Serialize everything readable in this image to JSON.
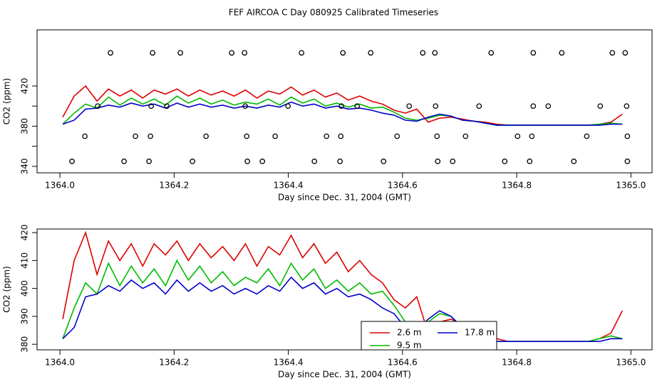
{
  "title": "FEF AIRCOA C  Day 080925  Calibrated Timeseries",
  "chart_data": [
    {
      "type": "line",
      "xlabel": "Day since Dec. 31, 2004 (GMT)",
      "ylabel": "CO2 (ppm)",
      "xlim": [
        1363.96,
        1365.037
      ],
      "ylim": [
        333.6,
        475.9
      ],
      "xticks": [
        {
          "value": 1364,
          "label": "1364.0"
        },
        1364.2,
        1364.4,
        1364.6,
        1364.8,
        {
          "value": 1365,
          "label": "1365.0"
        }
      ],
      "yticks": [
        340,
        380,
        420
      ],
      "yminorticks": [
        360,
        400
      ],
      "x": [
        1364.005,
        1364.025,
        1364.045,
        1364.065,
        1364.085,
        1364.105,
        1364.125,
        1364.145,
        1364.165,
        1364.185,
        1364.205,
        1364.225,
        1364.245,
        1364.265,
        1364.285,
        1364.305,
        1364.325,
        1364.345,
        1364.365,
        1364.385,
        1364.405,
        1364.425,
        1364.445,
        1364.465,
        1364.485,
        1364.505,
        1364.525,
        1364.545,
        1364.565,
        1364.585,
        1364.605,
        1364.625,
        1364.645,
        1364.665,
        1364.685,
        1364.705,
        1364.725,
        1364.745,
        1364.765,
        1364.785,
        1364.805,
        1364.825,
        1364.845,
        1364.865,
        1364.885,
        1364.905,
        1364.925,
        1364.945,
        1364.965,
        1364.985
      ],
      "series": [
        {
          "name": "2.6 m",
          "color": "#dd0000",
          "values": [
            389,
            410,
            420,
            405,
            417,
            410,
            416,
            408,
            416,
            412,
            417,
            410,
            416,
            411,
            415,
            410,
            416,
            408,
            415,
            412,
            419,
            411,
            416,
            409,
            413,
            406,
            410,
            405,
            402,
            396,
            393,
            397,
            384,
            388,
            389,
            387,
            385,
            384,
            382,
            381,
            381,
            381,
            381,
            381,
            381,
            381,
            381,
            382,
            384,
            392
          ]
        },
        {
          "name": "9.5 m",
          "color": "#00bb00",
          "values": [
            382,
            393,
            402,
            398,
            409,
            401,
            408,
            402,
            407,
            401,
            410,
            403,
            408,
            402,
            406,
            401,
            404,
            402,
            407,
            401,
            409,
            403,
            407,
            400,
            403,
            399,
            402,
            398,
            399,
            394,
            388,
            386,
            388,
            391,
            390,
            386,
            385,
            383,
            381,
            381,
            381,
            381,
            381,
            381,
            381,
            381,
            381,
            382,
            383,
            382
          ]
        },
        {
          "name": "17.8 m",
          "color": "#0000cc",
          "values": [
            382,
            386,
            397,
            398,
            401,
            399,
            403,
            400,
            402,
            398,
            403,
            399,
            402,
            399,
            401,
            398,
            400,
            398,
            401,
            399,
            404,
            400,
            402,
            398,
            400,
            397,
            398,
            396,
            393,
            391,
            386,
            385,
            389,
            392,
            390,
            386,
            385,
            383,
            381,
            381,
            381,
            381,
            381,
            381,
            381,
            381,
            381,
            381,
            382,
            382
          ]
        }
      ],
      "markers": {
        "x": [
          1364.0886,
          1364.1623,
          1364.211,
          1364.3009,
          1364.3233,
          1364.4232,
          1364.4956,
          1364.5443,
          1364.6355,
          1364.6567,
          1364.7553,
          1364.829,
          1364.8789,
          1364.9675,
          1364.99,
          1364.0662,
          1364.1598,
          1364.1873,
          1364.3246,
          1364.3995,
          1364.4931,
          1364.5206,
          1364.6117,
          1364.6579,
          1364.7341,
          1364.829,
          1364.8552,
          1364.9463,
          1364.9925,
          1364.0437,
          1364.1323,
          1364.1586,
          1364.2559,
          1364.3271,
          1364.377,
          1364.4669,
          1364.4919,
          1364.5905,
          1364.6604,
          1364.7104,
          1364.8015,
          1364.8265,
          1364.9226,
          1364.9938,
          1364.0212,
          1364.1124,
          1364.1561,
          1364.2322,
          1364.3283,
          1364.3546,
          1364.4457,
          1364.4906,
          1364.5668,
          1364.6617,
          1364.6879,
          1364.779,
          1364.8227,
          1364.9001,
          1364.9938
        ],
        "y": [
          453,
          453,
          453,
          453,
          453,
          453,
          453,
          453,
          453,
          453,
          453,
          453,
          453,
          453,
          453,
          400,
          400,
          400,
          400,
          400,
          400,
          400,
          400,
          400,
          400,
          400,
          400,
          400,
          400,
          370,
          370,
          370,
          370,
          370,
          370,
          370,
          370,
          370,
          370,
          370,
          370,
          370,
          370,
          370,
          345,
          345,
          345,
          345,
          345,
          345,
          345,
          345,
          345,
          345,
          345,
          345,
          345,
          345,
          345
        ]
      }
    },
    {
      "type": "line",
      "xlabel": "Day since Dec. 31, 2004 (GMT)",
      "ylabel": "CO2 (ppm)",
      "xlim": [
        1363.96,
        1365.037
      ],
      "ylim": [
        378.0,
        421.3
      ],
      "xticks": [
        {
          "value": 1364,
          "label": "1364.0"
        },
        1364.2,
        1364.4,
        1364.6,
        1364.8,
        {
          "value": 1365,
          "label": "1365.0"
        }
      ],
      "yticks": [
        380,
        390,
        400,
        410,
        420
      ],
      "legend": "bottom",
      "x": [
        1364.005,
        1364.025,
        1364.045,
        1364.065,
        1364.085,
        1364.105,
        1364.125,
        1364.145,
        1364.165,
        1364.185,
        1364.205,
        1364.225,
        1364.245,
        1364.265,
        1364.285,
        1364.305,
        1364.325,
        1364.345,
        1364.365,
        1364.385,
        1364.405,
        1364.425,
        1364.445,
        1364.465,
        1364.485,
        1364.505,
        1364.525,
        1364.545,
        1364.565,
        1364.585,
        1364.605,
        1364.625,
        1364.645,
        1364.665,
        1364.685,
        1364.705,
        1364.725,
        1364.745,
        1364.765,
        1364.785,
        1364.805,
        1364.825,
        1364.845,
        1364.865,
        1364.885,
        1364.905,
        1364.925,
        1364.945,
        1364.965,
        1364.985
      ],
      "series": [
        {
          "name": "2.6 m",
          "color": "#dd0000",
          "values": [
            389,
            410,
            420,
            405,
            417,
            410,
            416,
            408,
            416,
            412,
            417,
            410,
            416,
            411,
            415,
            410,
            416,
            408,
            415,
            412,
            419,
            411,
            416,
            409,
            413,
            406,
            410,
            405,
            402,
            396,
            393,
            397,
            384,
            388,
            389,
            387,
            385,
            384,
            382,
            381,
            381,
            381,
            381,
            381,
            381,
            381,
            381,
            382,
            384,
            392
          ]
        },
        {
          "name": "9.5 m",
          "color": "#00bb00",
          "values": [
            382,
            393,
            402,
            398,
            409,
            401,
            408,
            402,
            407,
            401,
            410,
            403,
            408,
            402,
            406,
            401,
            404,
            402,
            407,
            401,
            409,
            403,
            407,
            400,
            403,
            399,
            402,
            398,
            399,
            394,
            388,
            386,
            388,
            391,
            390,
            386,
            385,
            383,
            381,
            381,
            381,
            381,
            381,
            381,
            381,
            381,
            381,
            382,
            383,
            382
          ]
        },
        {
          "name": "17.8 m",
          "color": "#0000cc",
          "values": [
            382,
            386,
            397,
            398,
            401,
            399,
            403,
            400,
            402,
            398,
            403,
            399,
            402,
            399,
            401,
            398,
            400,
            398,
            401,
            399,
            404,
            400,
            402,
            398,
            400,
            397,
            398,
            396,
            393,
            391,
            386,
            385,
            389,
            392,
            390,
            386,
            385,
            383,
            381,
            381,
            381,
            381,
            381,
            381,
            381,
            381,
            381,
            381,
            382,
            382
          ]
        }
      ]
    }
  ]
}
